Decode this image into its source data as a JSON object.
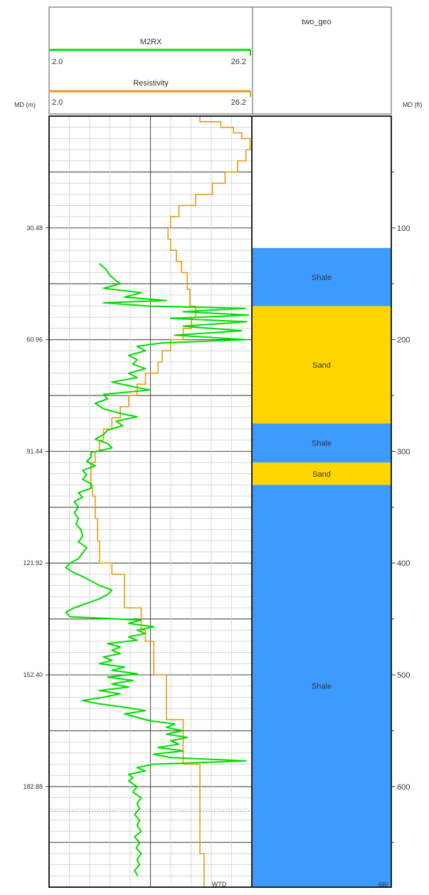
{
  "chart_data": {
    "type": "line",
    "title": "two_geo",
    "left_axis": {
      "label": "MD (m)",
      "ticks": [
        30.48,
        60.96,
        91.44,
        121.92,
        152.4,
        182.88
      ],
      "tick_labels": [
        "30.48",
        "60.96",
        "91.44",
        "121.92",
        "152.40",
        "182.88"
      ]
    },
    "right_axis": {
      "label": "MD (ft)",
      "ticks": [
        100,
        200,
        300,
        400,
        500,
        600
      ],
      "tick_labels": [
        "100",
        "200",
        "300",
        "400",
        "500",
        "600"
      ]
    },
    "depth_range_ft": [
      0,
      690
    ],
    "series": [
      {
        "name": "M2RX",
        "color": "#00dd00",
        "scale_min_label": "2.0",
        "scale_max_label": "26.2",
        "xlim": [
          2.0,
          26.2
        ],
        "points": [
          [
            132,
            8.0
          ],
          [
            137,
            8.8
          ],
          [
            142,
            9.2
          ],
          [
            146,
            9.8
          ],
          [
            150,
            10.5
          ],
          [
            154,
            8.5
          ],
          [
            158,
            13.0
          ],
          [
            162,
            11.0
          ],
          [
            165,
            16.0
          ],
          [
            167,
            8.5
          ],
          [
            170,
            14.0
          ],
          [
            172,
            25.4
          ],
          [
            175,
            18.0
          ],
          [
            178,
            25.8
          ],
          [
            181,
            16.5
          ],
          [
            184,
            25.6
          ],
          [
            188,
            18.0
          ],
          [
            192,
            25.0
          ],
          [
            196,
            17.0
          ],
          [
            200,
            25.5
          ],
          [
            203,
            15.5
          ],
          [
            206,
            12.5
          ],
          [
            210,
            13.5
          ],
          [
            214,
            11.5
          ],
          [
            218,
            12.5
          ],
          [
            222,
            12.0
          ],
          [
            226,
            13.5
          ],
          [
            230,
            11.5
          ],
          [
            234,
            12.5
          ],
          [
            238,
            9.5
          ],
          [
            242,
            12.0
          ],
          [
            245,
            14.0
          ],
          [
            249,
            8.5
          ],
          [
            253,
            9.0
          ],
          [
            257,
            7.5
          ],
          [
            262,
            8.5
          ],
          [
            266,
            10.5
          ],
          [
            269,
            12.5
          ],
          [
            273,
            10.0
          ],
          [
            277,
            10.8
          ],
          [
            281,
            9.0
          ],
          [
            285,
            8.5
          ],
          [
            289,
            7.5
          ],
          [
            293,
            9.0
          ],
          [
            297,
            9.5
          ],
          [
            301,
            7.0
          ],
          [
            305,
            7.0
          ],
          [
            309,
            6.5
          ],
          [
            313,
            7.5
          ],
          [
            317,
            6.0
          ],
          [
            321,
            6.5
          ],
          [
            325,
            6.0
          ],
          [
            329,
            7.0
          ],
          [
            333,
            7.0
          ],
          [
            337,
            5.5
          ],
          [
            341,
            6.0
          ],
          [
            345,
            5.0
          ],
          [
            350,
            5.5
          ],
          [
            355,
            5.0
          ],
          [
            360,
            5.5
          ],
          [
            365,
            5.2
          ],
          [
            370,
            5.8
          ],
          [
            376,
            6.0
          ],
          [
            381,
            5.5
          ],
          [
            386,
            6.5
          ],
          [
            391,
            6.0
          ],
          [
            396,
            5.5
          ],
          [
            400,
            4.5
          ],
          [
            404,
            4.0
          ],
          [
            408,
            4.8
          ],
          [
            412,
            6.0
          ],
          [
            416,
            7.0
          ],
          [
            420,
            8.0
          ],
          [
            424,
            9.5
          ],
          [
            428,
            9.0
          ],
          [
            432,
            8.0
          ],
          [
            436,
            6.5
          ],
          [
            440,
            5.0
          ],
          [
            444,
            4.0
          ],
          [
            448,
            4.5
          ],
          [
            451,
            13.0
          ],
          [
            454,
            11.5
          ],
          [
            457,
            14.5
          ],
          [
            460,
            12.5
          ],
          [
            463,
            13.5
          ],
          [
            466,
            11.5
          ],
          [
            469,
            12.5
          ],
          [
            472,
            9.0
          ],
          [
            475,
            10.5
          ],
          [
            478,
            9.5
          ],
          [
            481,
            10.5
          ],
          [
            484,
            8.5
          ],
          [
            487,
            9.5
          ],
          [
            490,
            8.0
          ],
          [
            493,
            11.0
          ],
          [
            496,
            9.5
          ],
          [
            499,
            12.5
          ],
          [
            502,
            9.0
          ],
          [
            505,
            12.0
          ],
          [
            508,
            9.5
          ],
          [
            511,
            11.5
          ],
          [
            514,
            8.0
          ],
          [
            517,
            10.5
          ],
          [
            520,
            8.5
          ],
          [
            523,
            6.0
          ],
          [
            526,
            8.0
          ],
          [
            529,
            11.0
          ],
          [
            532,
            13.5
          ],
          [
            535,
            11.0
          ],
          [
            538,
            12.5
          ],
          [
            541,
            14.0
          ],
          [
            544,
            17.0
          ],
          [
            547,
            16.0
          ],
          [
            550,
            18.0
          ],
          [
            553,
            16.0
          ],
          [
            556,
            18.5
          ],
          [
            559,
            16.5
          ],
          [
            562,
            17.5
          ],
          [
            565,
            15.0
          ],
          [
            568,
            18.0
          ],
          [
            571,
            14.5
          ],
          [
            574,
            16.5
          ],
          [
            577,
            25.5
          ],
          [
            580,
            14.5
          ],
          [
            583,
            12.5
          ],
          [
            586,
            13.5
          ],
          [
            589,
            11.5
          ],
          [
            592,
            12.0
          ],
          [
            595,
            11.5
          ],
          [
            600,
            12.5
          ],
          [
            605,
            12.0
          ],
          [
            610,
            13.0
          ],
          [
            615,
            12.5
          ],
          [
            620,
            12.8
          ],
          [
            625,
            12.2
          ],
          [
            630,
            12.8
          ],
          [
            635,
            12.5
          ],
          [
            640,
            13.0
          ],
          [
            645,
            12.2
          ],
          [
            650,
            12.8
          ],
          [
            655,
            12.4
          ],
          [
            660,
            13.0
          ],
          [
            665,
            12.5
          ],
          [
            670,
            12.8
          ],
          [
            675,
            12.2
          ],
          [
            680,
            12.6
          ]
        ]
      },
      {
        "name": "Resistivity",
        "color": "#e39a17",
        "scale_min_label": "2.0",
        "scale_max_label": "26.2",
        "xlim": [
          2.0,
          26.2
        ],
        "points": [
          [
            0,
            20.0
          ],
          [
            5,
            22.5
          ],
          [
            10,
            24.0
          ],
          [
            15,
            25.0
          ],
          [
            20,
            26.0
          ],
          [
            25,
            26.0
          ],
          [
            30,
            25.5
          ],
          [
            40,
            24.5
          ],
          [
            50,
            23.0
          ],
          [
            60,
            21.5
          ],
          [
            70,
            19.5
          ],
          [
            80,
            17.5
          ],
          [
            90,
            16.5
          ],
          [
            100,
            16.2
          ],
          [
            110,
            16.5
          ],
          [
            120,
            17.2
          ],
          [
            130,
            17.8
          ],
          [
            140,
            18.5
          ],
          [
            155,
            18.8
          ],
          [
            170,
            19.5
          ],
          [
            180,
            19.0
          ],
          [
            190,
            18.0
          ],
          [
            200,
            16.5
          ],
          [
            210,
            15.5
          ],
          [
            220,
            15.0
          ],
          [
            230,
            13.5
          ],
          [
            240,
            12.5
          ],
          [
            250,
            11.5
          ],
          [
            260,
            10.5
          ],
          [
            270,
            9.5
          ],
          [
            280,
            8.5
          ],
          [
            290,
            8.0
          ],
          [
            300,
            7.5
          ],
          [
            310,
            7.0
          ],
          [
            320,
            7.0
          ],
          [
            330,
            7.2
          ],
          [
            340,
            7.5
          ],
          [
            350,
            7.5
          ],
          [
            360,
            7.8
          ],
          [
            370,
            7.8
          ],
          [
            380,
            8.0
          ],
          [
            390,
            8.0
          ],
          [
            400,
            9.5
          ],
          [
            410,
            11.0
          ],
          [
            420,
            11.0
          ],
          [
            430,
            11.0
          ],
          [
            440,
            13.0
          ],
          [
            450,
            13.0
          ],
          [
            460,
            13.5
          ],
          [
            470,
            14.5
          ],
          [
            480,
            14.5
          ],
          [
            490,
            14.5
          ],
          [
            500,
            16.0
          ],
          [
            510,
            16.0
          ],
          [
            520,
            16.0
          ],
          [
            530,
            16.0
          ],
          [
            540,
            18.0
          ],
          [
            550,
            18.0
          ],
          [
            560,
            18.0
          ],
          [
            570,
            18.0
          ],
          [
            580,
            20.0
          ],
          [
            600,
            20.0
          ],
          [
            620,
            20.0
          ],
          [
            640,
            20.0
          ],
          [
            660,
            20.5
          ],
          [
            680,
            20.5
          ],
          [
            690,
            21.0
          ]
        ]
      }
    ],
    "lithology": [
      {
        "top": 0,
        "base": 118,
        "label": "",
        "color": "#ffffff"
      },
      {
        "top": 118,
        "base": 170,
        "label": "Shale",
        "color": "#3d9bff"
      },
      {
        "top": 170,
        "base": 275,
        "label": "Sand",
        "color": "#ffd500"
      },
      {
        "top": 275,
        "base": 310,
        "label": "Shale",
        "color": "#3d9bff"
      },
      {
        "top": 310,
        "base": 330,
        "label": "Sand",
        "color": "#ffd500"
      },
      {
        "top": 330,
        "base": 690,
        "label": "Shale",
        "color": "#3d9bff"
      }
    ],
    "marker": {
      "depth": 622,
      "color": "#7777ff"
    },
    "footer_left": "WTD",
    "footer_right": "690",
    "grid": true
  }
}
